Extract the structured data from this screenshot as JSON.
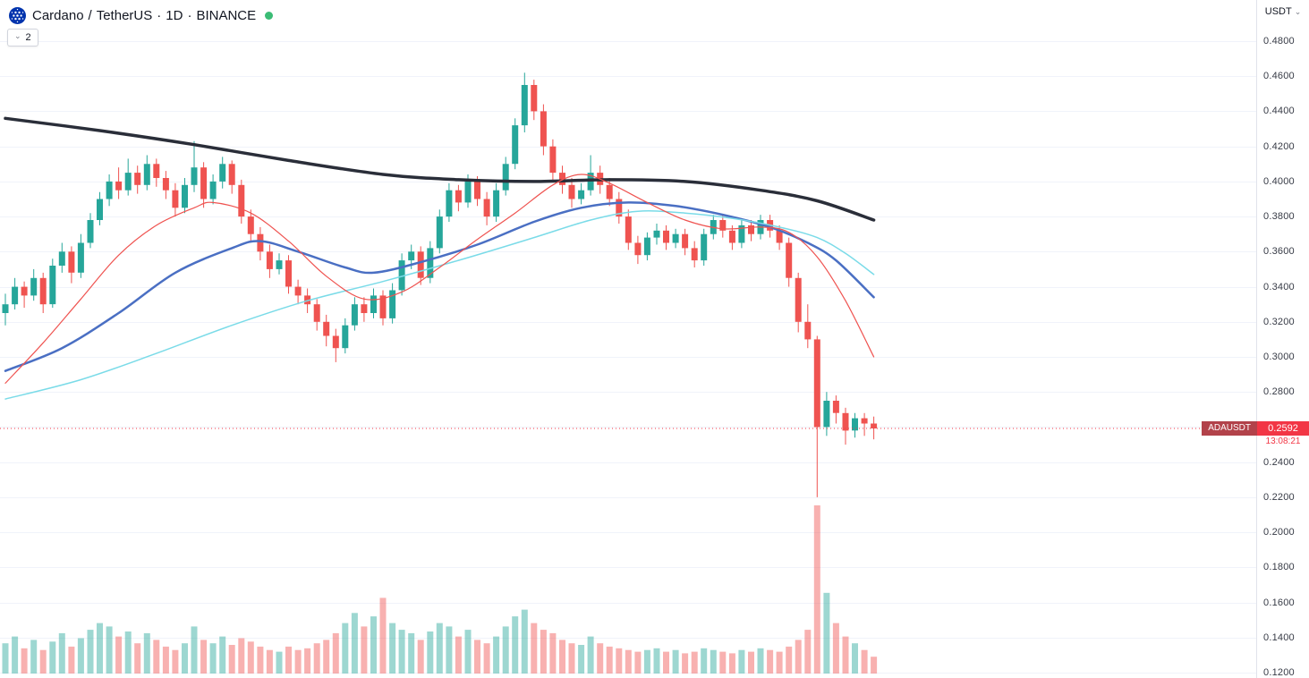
{
  "header": {
    "symbol": "Cardano",
    "separator": "/",
    "quote": "TetherUS",
    "dot": "·",
    "interval": "1D",
    "exchange": "BINANCE",
    "market_status": "open",
    "indicators_count": "2"
  },
  "icons": {
    "chevron_down": "⌄"
  },
  "price_axis": {
    "unit_label": "USDT",
    "ticks": [
      "0.4800",
      "0.4600",
      "0.4400",
      "0.4200",
      "0.4000",
      "0.3800",
      "0.3600",
      "0.3400",
      "0.3200",
      "0.3000",
      "0.2800",
      "0.2600",
      "0.2400",
      "0.2200",
      "0.2000",
      "0.1800",
      "0.1600",
      "0.1400",
      "0.1200"
    ]
  },
  "price_label": {
    "symbol": "ADAUSDT",
    "price": "0.2592",
    "countdown": "13:08:21"
  },
  "colors": {
    "up": "#26a69a",
    "down": "#ef5350",
    "price_line": "#f23645",
    "volume_up": "rgba(38,166,154,0.45)",
    "volume_down": "rgba(239,83,80,0.45)",
    "grid": "#f0f3fa",
    "axis_text": "#363a45",
    "badge_symbol_bg": "#b2424a",
    "badge_price_bg": "#f23645",
    "logo_blue": "#0033ad",
    "status_green": "#3bbc75"
  },
  "chart_data": {
    "type": "candlestick",
    "title": "Cardano / TetherUS · 1D · BINANCE",
    "symbol": "ADAUSDT",
    "exchange": "BINANCE",
    "interval": "1D",
    "last_price": 0.2592,
    "price_line": 0.2592,
    "countdown": "13:08:21",
    "y_axis": {
      "min": 0.12,
      "max": 0.48,
      "tick_step": 0.02,
      "unit": "USDT"
    },
    "legend_note": "volume pane at bottom; four moving averages overlaid",
    "candles": [
      [
        0.325,
        0.336,
        0.318,
        0.33
      ],
      [
        0.33,
        0.345,
        0.327,
        0.34
      ],
      [
        0.34,
        0.343,
        0.328,
        0.335
      ],
      [
        0.335,
        0.35,
        0.332,
        0.345
      ],
      [
        0.345,
        0.348,
        0.325,
        0.33
      ],
      [
        0.33,
        0.356,
        0.328,
        0.352
      ],
      [
        0.352,
        0.365,
        0.348,
        0.36
      ],
      [
        0.36,
        0.363,
        0.342,
        0.348
      ],
      [
        0.348,
        0.37,
        0.345,
        0.365
      ],
      [
        0.365,
        0.382,
        0.362,
        0.378
      ],
      [
        0.378,
        0.394,
        0.375,
        0.39
      ],
      [
        0.39,
        0.404,
        0.386,
        0.4
      ],
      [
        0.4,
        0.408,
        0.39,
        0.395
      ],
      [
        0.395,
        0.413,
        0.392,
        0.405
      ],
      [
        0.405,
        0.409,
        0.393,
        0.398
      ],
      [
        0.398,
        0.415,
        0.395,
        0.41
      ],
      [
        0.41,
        0.413,
        0.397,
        0.402
      ],
      [
        0.402,
        0.406,
        0.39,
        0.395
      ],
      [
        0.395,
        0.399,
        0.38,
        0.385
      ],
      [
        0.385,
        0.402,
        0.382,
        0.398
      ],
      [
        0.398,
        0.423,
        0.394,
        0.408
      ],
      [
        0.408,
        0.411,
        0.385,
        0.39
      ],
      [
        0.39,
        0.404,
        0.387,
        0.4
      ],
      [
        0.4,
        0.414,
        0.396,
        0.41
      ],
      [
        0.41,
        0.412,
        0.393,
        0.398
      ],
      [
        0.398,
        0.401,
        0.376,
        0.38
      ],
      [
        0.38,
        0.384,
        0.366,
        0.37
      ],
      [
        0.37,
        0.374,
        0.355,
        0.36
      ],
      [
        0.36,
        0.364,
        0.345,
        0.35
      ],
      [
        0.35,
        0.359,
        0.347,
        0.355
      ],
      [
        0.355,
        0.358,
        0.336,
        0.34
      ],
      [
        0.34,
        0.344,
        0.33,
        0.335
      ],
      [
        0.335,
        0.339,
        0.325,
        0.33
      ],
      [
        0.33,
        0.333,
        0.315,
        0.32
      ],
      [
        0.32,
        0.324,
        0.306,
        0.312
      ],
      [
        0.312,
        0.316,
        0.297,
        0.305
      ],
      [
        0.305,
        0.322,
        0.302,
        0.318
      ],
      [
        0.318,
        0.334,
        0.315,
        0.33
      ],
      [
        0.33,
        0.334,
        0.32,
        0.325
      ],
      [
        0.325,
        0.339,
        0.322,
        0.335
      ],
      [
        0.335,
        0.338,
        0.318,
        0.322
      ],
      [
        0.322,
        0.342,
        0.319,
        0.338
      ],
      [
        0.338,
        0.359,
        0.335,
        0.355
      ],
      [
        0.355,
        0.364,
        0.35,
        0.36
      ],
      [
        0.36,
        0.363,
        0.341,
        0.345
      ],
      [
        0.345,
        0.366,
        0.342,
        0.362
      ],
      [
        0.362,
        0.384,
        0.359,
        0.38
      ],
      [
        0.38,
        0.399,
        0.377,
        0.395
      ],
      [
        0.395,
        0.398,
        0.383,
        0.388
      ],
      [
        0.388,
        0.404,
        0.385,
        0.4
      ],
      [
        0.4,
        0.403,
        0.386,
        0.39
      ],
      [
        0.39,
        0.394,
        0.375,
        0.38
      ],
      [
        0.38,
        0.399,
        0.377,
        0.395
      ],
      [
        0.395,
        0.414,
        0.392,
        0.41
      ],
      [
        0.41,
        0.436,
        0.407,
        0.432
      ],
      [
        0.432,
        0.462,
        0.428,
        0.455
      ],
      [
        0.455,
        0.458,
        0.435,
        0.44
      ],
      [
        0.44,
        0.444,
        0.415,
        0.42
      ],
      [
        0.42,
        0.424,
        0.4,
        0.405
      ],
      [
        0.405,
        0.409,
        0.393,
        0.398
      ],
      [
        0.398,
        0.402,
        0.385,
        0.39
      ],
      [
        0.39,
        0.399,
        0.387,
        0.395
      ],
      [
        0.395,
        0.415,
        0.392,
        0.405
      ],
      [
        0.405,
        0.409,
        0.393,
        0.398
      ],
      [
        0.398,
        0.402,
        0.386,
        0.39
      ],
      [
        0.39,
        0.394,
        0.376,
        0.38
      ],
      [
        0.38,
        0.384,
        0.361,
        0.365
      ],
      [
        0.365,
        0.369,
        0.353,
        0.358
      ],
      [
        0.358,
        0.371,
        0.355,
        0.368
      ],
      [
        0.368,
        0.376,
        0.364,
        0.372
      ],
      [
        0.372,
        0.375,
        0.361,
        0.365
      ],
      [
        0.365,
        0.373,
        0.362,
        0.37
      ],
      [
        0.37,
        0.373,
        0.358,
        0.362
      ],
      [
        0.362,
        0.366,
        0.351,
        0.355
      ],
      [
        0.355,
        0.373,
        0.352,
        0.37
      ],
      [
        0.37,
        0.381,
        0.367,
        0.378
      ],
      [
        0.378,
        0.381,
        0.368,
        0.372
      ],
      [
        0.372,
        0.375,
        0.361,
        0.365
      ],
      [
        0.365,
        0.378,
        0.362,
        0.375
      ],
      [
        0.375,
        0.378,
        0.366,
        0.37
      ],
      [
        0.37,
        0.381,
        0.367,
        0.378
      ],
      [
        0.378,
        0.381,
        0.368,
        0.372
      ],
      [
        0.372,
        0.375,
        0.361,
        0.365
      ],
      [
        0.365,
        0.368,
        0.34,
        0.345
      ],
      [
        0.345,
        0.348,
        0.314,
        0.32
      ],
      [
        0.32,
        0.33,
        0.305,
        0.31
      ],
      [
        0.31,
        0.312,
        0.22,
        0.26
      ],
      [
        0.26,
        0.28,
        0.255,
        0.275
      ],
      [
        0.275,
        0.278,
        0.262,
        0.268
      ],
      [
        0.268,
        0.271,
        0.25,
        0.258
      ],
      [
        0.258,
        0.268,
        0.254,
        0.265
      ],
      [
        0.265,
        0.268,
        0.255,
        0.262
      ],
      [
        0.262,
        0.266,
        0.253,
        0.2592
      ]
    ],
    "volumes": [
      18,
      22,
      15,
      20,
      14,
      19,
      24,
      16,
      21,
      26,
      30,
      28,
      22,
      25,
      18,
      24,
      20,
      16,
      14,
      18,
      28,
      20,
      18,
      22,
      17,
      21,
      19,
      16,
      14,
      13,
      16,
      14,
      15,
      18,
      20,
      24,
      30,
      36,
      28,
      34,
      45,
      30,
      26,
      24,
      20,
      25,
      30,
      28,
      22,
      26,
      20,
      18,
      22,
      28,
      34,
      38,
      30,
      26,
      24,
      20,
      18,
      17,
      22,
      18,
      16,
      15,
      14,
      13,
      14,
      15,
      13,
      14,
      12,
      13,
      15,
      14,
      13,
      12,
      14,
      13,
      15,
      14,
      13,
      16,
      20,
      26,
      100,
      48,
      30,
      22,
      18,
      14,
      10
    ],
    "moving_averages": [
      {
        "name": "slow-ma-black",
        "color": "#2a2e39",
        "width": 3.5,
        "points": [
          [
            0,
            0.436
          ],
          [
            10,
            0.429
          ],
          [
            20,
            0.421
          ],
          [
            30,
            0.412
          ],
          [
            40,
            0.404
          ],
          [
            48,
            0.401
          ],
          [
            56,
            0.4
          ],
          [
            64,
            0.401
          ],
          [
            72,
            0.4
          ],
          [
            80,
            0.395
          ],
          [
            86,
            0.389
          ],
          [
            92,
            0.378
          ]
        ]
      },
      {
        "name": "mid-ma-blue",
        "color": "#4a6fc3",
        "width": 2.5,
        "points": [
          [
            0,
            0.292
          ],
          [
            6,
            0.305
          ],
          [
            12,
            0.325
          ],
          [
            18,
            0.348
          ],
          [
            24,
            0.362
          ],
          [
            27,
            0.366
          ],
          [
            31,
            0.36
          ],
          [
            36,
            0.351
          ],
          [
            39,
            0.348
          ],
          [
            44,
            0.354
          ],
          [
            50,
            0.364
          ],
          [
            56,
            0.377
          ],
          [
            61,
            0.385
          ],
          [
            66,
            0.388
          ],
          [
            71,
            0.386
          ],
          [
            76,
            0.381
          ],
          [
            81,
            0.374
          ],
          [
            85,
            0.365
          ],
          [
            88,
            0.355
          ],
          [
            92,
            0.334
          ]
        ]
      },
      {
        "name": "fast-ma-cyan",
        "color": "#7adbe8",
        "width": 1.5,
        "points": [
          [
            0,
            0.276
          ],
          [
            8,
            0.287
          ],
          [
            16,
            0.302
          ],
          [
            24,
            0.318
          ],
          [
            32,
            0.332
          ],
          [
            40,
            0.343
          ],
          [
            48,
            0.355
          ],
          [
            56,
            0.368
          ],
          [
            62,
            0.378
          ],
          [
            67,
            0.383
          ],
          [
            72,
            0.382
          ],
          [
            77,
            0.379
          ],
          [
            82,
            0.374
          ],
          [
            86,
            0.368
          ],
          [
            89,
            0.359
          ],
          [
            92,
            0.347
          ]
        ]
      },
      {
        "name": "fast-ma-red",
        "color": "#ef5350",
        "width": 1.2,
        "points": [
          [
            0,
            0.285
          ],
          [
            4,
            0.308
          ],
          [
            8,
            0.333
          ],
          [
            12,
            0.358
          ],
          [
            16,
            0.375
          ],
          [
            20,
            0.385
          ],
          [
            22,
            0.388
          ],
          [
            26,
            0.382
          ],
          [
            30,
            0.366
          ],
          [
            34,
            0.346
          ],
          [
            38,
            0.333
          ],
          [
            42,
            0.337
          ],
          [
            46,
            0.351
          ],
          [
            50,
            0.367
          ],
          [
            54,
            0.382
          ],
          [
            58,
            0.398
          ],
          [
            61,
            0.404
          ],
          [
            64,
            0.399
          ],
          [
            68,
            0.388
          ],
          [
            72,
            0.378
          ],
          [
            76,
            0.373
          ],
          [
            80,
            0.374
          ],
          [
            83,
            0.371
          ],
          [
            86,
            0.357
          ],
          [
            89,
            0.332
          ],
          [
            92,
            0.3
          ]
        ]
      }
    ]
  }
}
